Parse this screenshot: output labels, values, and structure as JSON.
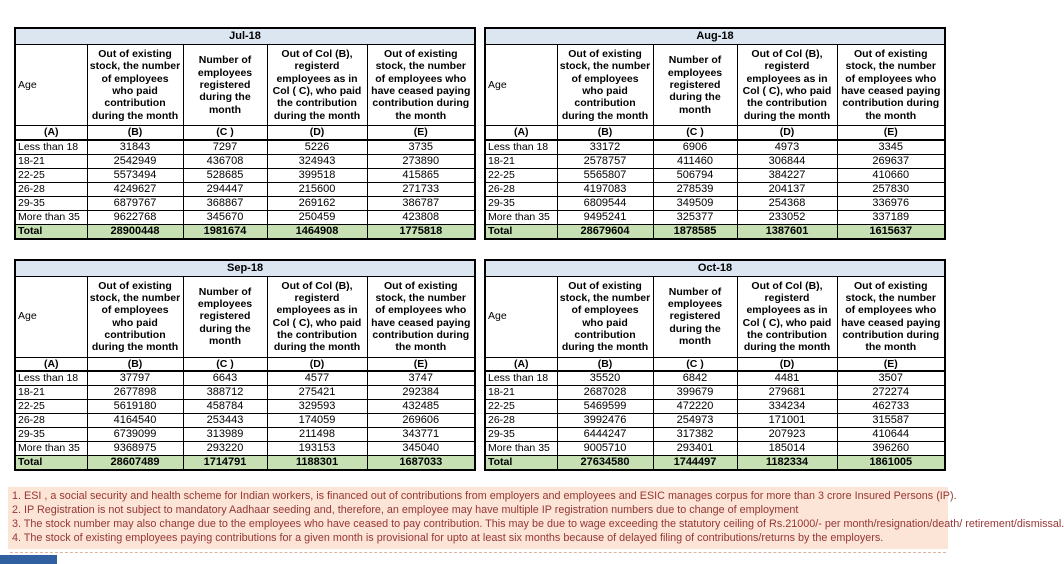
{
  "colors": {
    "title_fill": "#dce6f1",
    "total_fill": "#c6e0b4",
    "footnote_fill": "#fce4d6",
    "footnote_text": "#953735",
    "border": "#000000",
    "tab_blue": "#30609f"
  },
  "headers": {
    "labels": [
      "Age",
      "Out of existing stock, the number of employees who paid contribution during the month",
      "Number of employees registered during the month",
      "Out of Col (B), registerd employees as in Col ( C), who paid the contribution during the month",
      "Out of existing stock, the number of employees who have ceased paying contribution during the month"
    ],
    "letters": [
      "(A)",
      "(B)",
      "(C )",
      "(D)",
      "(E)"
    ]
  },
  "months": [
    {
      "title": "Jul-18",
      "rows": [
        [
          "Less than 18",
          "31843",
          "7297",
          "5226",
          "3735"
        ],
        [
          "18-21",
          "2542949",
          "436708",
          "324943",
          "273890"
        ],
        [
          "22-25",
          "5573494",
          "528685",
          "399518",
          "415865"
        ],
        [
          "26-28",
          "4249627",
          "294447",
          "215600",
          "271733"
        ],
        [
          "29-35",
          "6879767",
          "368867",
          "269162",
          "386787"
        ],
        [
          "More than 35",
          "9622768",
          "345670",
          "250459",
          "423808"
        ],
        [
          "Total",
          "28900448",
          "1981674",
          "1464908",
          "1775818"
        ]
      ]
    },
    {
      "title": "Aug-18",
      "rows": [
        [
          "Less than 18",
          "33172",
          "6906",
          "4973",
          "3345"
        ],
        [
          "18-21",
          "2578757",
          "411460",
          "306844",
          "269637"
        ],
        [
          "22-25",
          "5565807",
          "506794",
          "384227",
          "410660"
        ],
        [
          "26-28",
          "4197083",
          "278539",
          "204137",
          "257830"
        ],
        [
          "29-35",
          "6809544",
          "349509",
          "254368",
          "336976"
        ],
        [
          "More than 35",
          "9495241",
          "325377",
          "233052",
          "337189"
        ],
        [
          "Total",
          "28679604",
          "1878585",
          "1387601",
          "1615637"
        ]
      ]
    },
    {
      "title": "Sep-18",
      "rows": [
        [
          "Less than 18",
          "37797",
          "6643",
          "4577",
          "3747"
        ],
        [
          "18-21",
          "2677898",
          "388712",
          "275421",
          "292384"
        ],
        [
          "22-25",
          "5619180",
          "458784",
          "329593",
          "432485"
        ],
        [
          "26-28",
          "4164540",
          "253443",
          "174059",
          "269606"
        ],
        [
          "29-35",
          "6739099",
          "313989",
          "211498",
          "343771"
        ],
        [
          "More than 35",
          "9368975",
          "293220",
          "193153",
          "345040"
        ],
        [
          "Total",
          "28607489",
          "1714791",
          "1188301",
          "1687033"
        ]
      ]
    },
    {
      "title": "Oct-18",
      "rows": [
        [
          "Less than 18",
          "35520",
          "6842",
          "4481",
          "3507"
        ],
        [
          "18-21",
          "2687028",
          "399679",
          "279681",
          "272274"
        ],
        [
          "22-25",
          "5469599",
          "472220",
          "334234",
          "462733"
        ],
        [
          "26-28",
          "3992476",
          "254973",
          "171001",
          "315587"
        ],
        [
          "29-35",
          "6444247",
          "317382",
          "207923",
          "410644"
        ],
        [
          "More than 35",
          "9005710",
          "293401",
          "185014",
          "396260"
        ],
        [
          "Total",
          "27634580",
          "1744497",
          "1182334",
          "1861005"
        ]
      ]
    }
  ],
  "footnotes": [
    "1. ESI , a social security and health scheme for Indian workers, is financed out of contributions from employers and employees and ESIC manages corpus for more than 3 crore Insured Persons (IP).",
    "2. IP Registration is not subject to mandatory Aadhaar seeding and, therefore, an employee may have multiple IP registration numbers due to change of employment",
    "3. The stock number may also change due to the employees who have ceased to pay contribution. This may be due to wage exceeding the statutory ceiling of Rs.21000/- per month/resignation/death/ retirement/dismissal.",
    "4. The stock of existing employees paying contributions for a given month is provisional for upto at least six months because of delayed filing of contributions/returns by the employers."
  ]
}
